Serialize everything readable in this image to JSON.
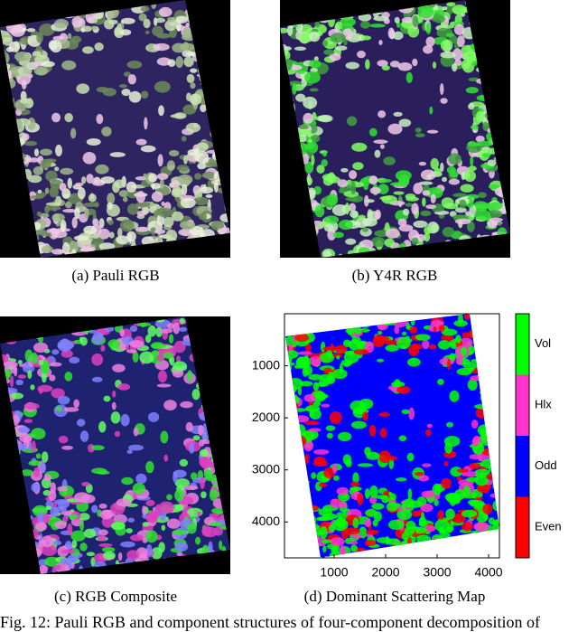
{
  "panels": [
    {
      "caption": "(a)  Pauli RGB"
    },
    {
      "caption": "(b)  Y4R  RGB"
    },
    {
      "caption": "(c)  RGB Composite"
    },
    {
      "caption": "(d)  Dominant Scattering Map"
    }
  ],
  "chart_data": {
    "type": "map",
    "xlim": [
      35,
      4210
    ],
    "ylim": [
      0,
      4690
    ],
    "xticks": [
      1000,
      2000,
      3000,
      4000
    ],
    "yticks": [
      1000,
      2000,
      3000,
      4000
    ],
    "colorbar": [
      {
        "name": "Vol",
        "color": "#00ff00"
      },
      {
        "name": "Hlx",
        "color": "#ff33cc"
      },
      {
        "name": "Odd",
        "color": "#0000ff"
      },
      {
        "name": "Even",
        "color": "#ff0000"
      }
    ]
  },
  "figure_caption": "Fig. 12: Pauli RGB and component structures of four-component decomposition of"
}
